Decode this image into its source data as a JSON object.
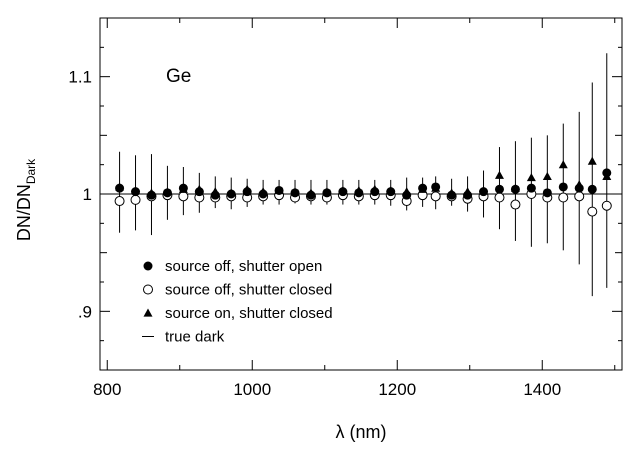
{
  "chart_data": {
    "type": "scatter",
    "xlabel": "λ (nm)",
    "ylabel": {
      "main": "DN/DN",
      "sub": "Dark"
    },
    "annotation": "Ge",
    "xlim": [
      790,
      1510
    ],
    "ylim": [
      0.85,
      1.15
    ],
    "xticks_major": [
      800,
      1000,
      1200,
      1400
    ],
    "xtick_labels": [
      "800",
      "1000",
      "1200",
      "1400"
    ],
    "yticks_major": [
      0.9,
      1.0,
      1.1
    ],
    "ytick_labels": [
      ".9",
      "1",
      "1.1"
    ],
    "reference_line_y": 1.0,
    "legend_position": "lower-left",
    "legend": [
      {
        "label": "source off, shutter open",
        "marker": "filled-circle"
      },
      {
        "label": "source off, shutter closed",
        "marker": "open-circle"
      },
      {
        "label": "source on, shutter closed",
        "marker": "filled-triangle"
      },
      {
        "label": "true dark",
        "marker": "line"
      }
    ],
    "series": [
      {
        "name": "source off, shutter open",
        "marker": "filled-circle",
        "x": [
          817,
          839,
          861,
          883,
          905,
          927,
          949,
          971,
          993,
          1015,
          1037,
          1059,
          1081,
          1103,
          1125,
          1147,
          1169,
          1191,
          1213,
          1235,
          1253,
          1275,
          1297,
          1319,
          1341,
          1363,
          1385,
          1407,
          1429,
          1451,
          1469,
          1489
        ],
        "y": [
          1.005,
          1.002,
          0.999,
          1.001,
          1.005,
          1.002,
          0.999,
          1.0,
          1.002,
          1.0,
          1.003,
          1.001,
          0.999,
          1.001,
          1.002,
          1.001,
          1.002,
          1.002,
          0.999,
          1.005,
          1.006,
          0.999,
          0.999,
          1.002,
          1.004,
          1.004,
          1.005,
          1.001,
          1.006,
          1.005,
          1.004,
          1.018
        ]
      },
      {
        "name": "source off, shutter closed",
        "marker": "open-circle",
        "x": [
          817,
          839,
          861,
          883,
          905,
          927,
          949,
          971,
          993,
          1015,
          1037,
          1059,
          1081,
          1103,
          1125,
          1147,
          1169,
          1191,
          1213,
          1235,
          1253,
          1275,
          1297,
          1319,
          1341,
          1363,
          1385,
          1407,
          1429,
          1451,
          1469,
          1489
        ],
        "y": [
          0.994,
          0.995,
          0.998,
          0.999,
          0.998,
          0.997,
          0.997,
          0.998,
          0.997,
          0.998,
          0.999,
          0.997,
          0.998,
          0.997,
          0.999,
          0.998,
          0.999,
          0.999,
          0.994,
          0.999,
          0.998,
          0.998,
          0.996,
          0.998,
          0.997,
          0.991,
          1.0,
          0.997,
          0.997,
          0.998,
          0.985,
          0.99
        ]
      },
      {
        "name": "source on, shutter closed",
        "marker": "filled-triangle",
        "x": [
          817,
          839,
          861,
          883,
          905,
          927,
          949,
          971,
          993,
          1015,
          1037,
          1059,
          1081,
          1103,
          1125,
          1147,
          1169,
          1191,
          1213,
          1235,
          1253,
          1275,
          1297,
          1319,
          1341,
          1363,
          1385,
          1407,
          1429,
          1451,
          1469,
          1489
        ],
        "y": [
          1.006,
          1.003,
          1.001,
          1.002,
          1.004,
          1.004,
          1.002,
          1.001,
          1.004,
          1.002,
          1.003,
          1.002,
          1.001,
          1.002,
          1.003,
          1.003,
          1.004,
          1.003,
          1.002,
          1.004,
          1.005,
          1.001,
          1.002,
          1.003,
          1.016,
          1.005,
          1.014,
          1.015,
          1.025,
          1.008,
          1.028,
          1.015
        ]
      }
    ],
    "error_bars": {
      "x": [
        817,
        839,
        861,
        883,
        905,
        927,
        949,
        971,
        993,
        1015,
        1037,
        1059,
        1081,
        1103,
        1125,
        1147,
        1169,
        1191,
        1213,
        1235,
        1253,
        1275,
        1297,
        1319,
        1341,
        1363,
        1385,
        1407,
        1429,
        1451,
        1469,
        1489
      ],
      "low": [
        0.967,
        0.969,
        0.965,
        0.978,
        0.982,
        0.984,
        0.988,
        0.987,
        0.989,
        0.991,
        0.991,
        0.992,
        0.991,
        0.991,
        0.991,
        0.991,
        0.991,
        0.99,
        0.986,
        0.989,
        0.987,
        0.99,
        0.985,
        0.98,
        0.97,
        0.96,
        0.955,
        0.958,
        0.952,
        0.94,
        0.913,
        0.92
      ],
      "high": [
        1.036,
        1.033,
        1.034,
        1.024,
        1.023,
        1.018,
        1.015,
        1.014,
        1.013,
        1.012,
        1.012,
        1.012,
        1.012,
        1.012,
        1.012,
        1.012,
        1.012,
        1.012,
        1.014,
        1.014,
        1.015,
        1.013,
        1.015,
        1.02,
        1.04,
        1.045,
        1.048,
        1.05,
        1.06,
        1.07,
        1.095,
        1.12
      ]
    }
  }
}
